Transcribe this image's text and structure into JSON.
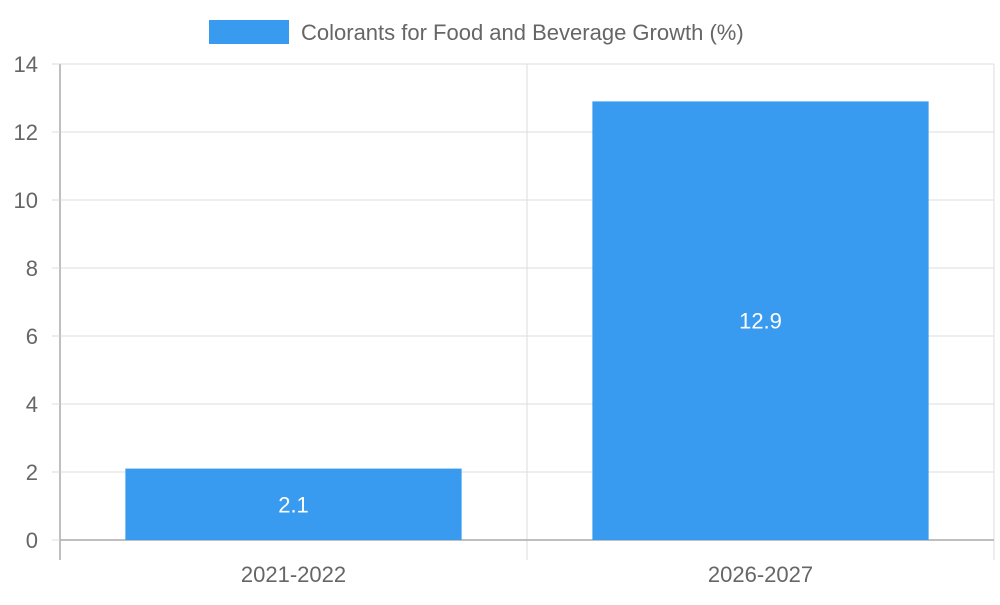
{
  "chart_data": {
    "type": "bar",
    "title": "",
    "xlabel": "",
    "ylabel": "",
    "categories": [
      "2021-2022",
      "2026-2027"
    ],
    "series": [
      {
        "name": "Colorants for Food and Beverage Growth (%)",
        "values": [
          2.1,
          12.9
        ],
        "data_labels": [
          "2.1",
          "12.9"
        ],
        "color": "#389BF0"
      }
    ],
    "ylim": [
      0,
      14
    ],
    "y_ticks": [
      0,
      2,
      4,
      6,
      8,
      10,
      12,
      14
    ],
    "y_tick_labels": [
      "0",
      "2",
      "4",
      "6",
      "8",
      "10",
      "12",
      "14"
    ],
    "grid": true,
    "legend_position": "top-center"
  },
  "colors": {
    "bar": "#389BF0",
    "grid": "#dddddd",
    "axis": "#aaaaaa",
    "tick_text": "#666666",
    "data_label": "#ffffff"
  }
}
